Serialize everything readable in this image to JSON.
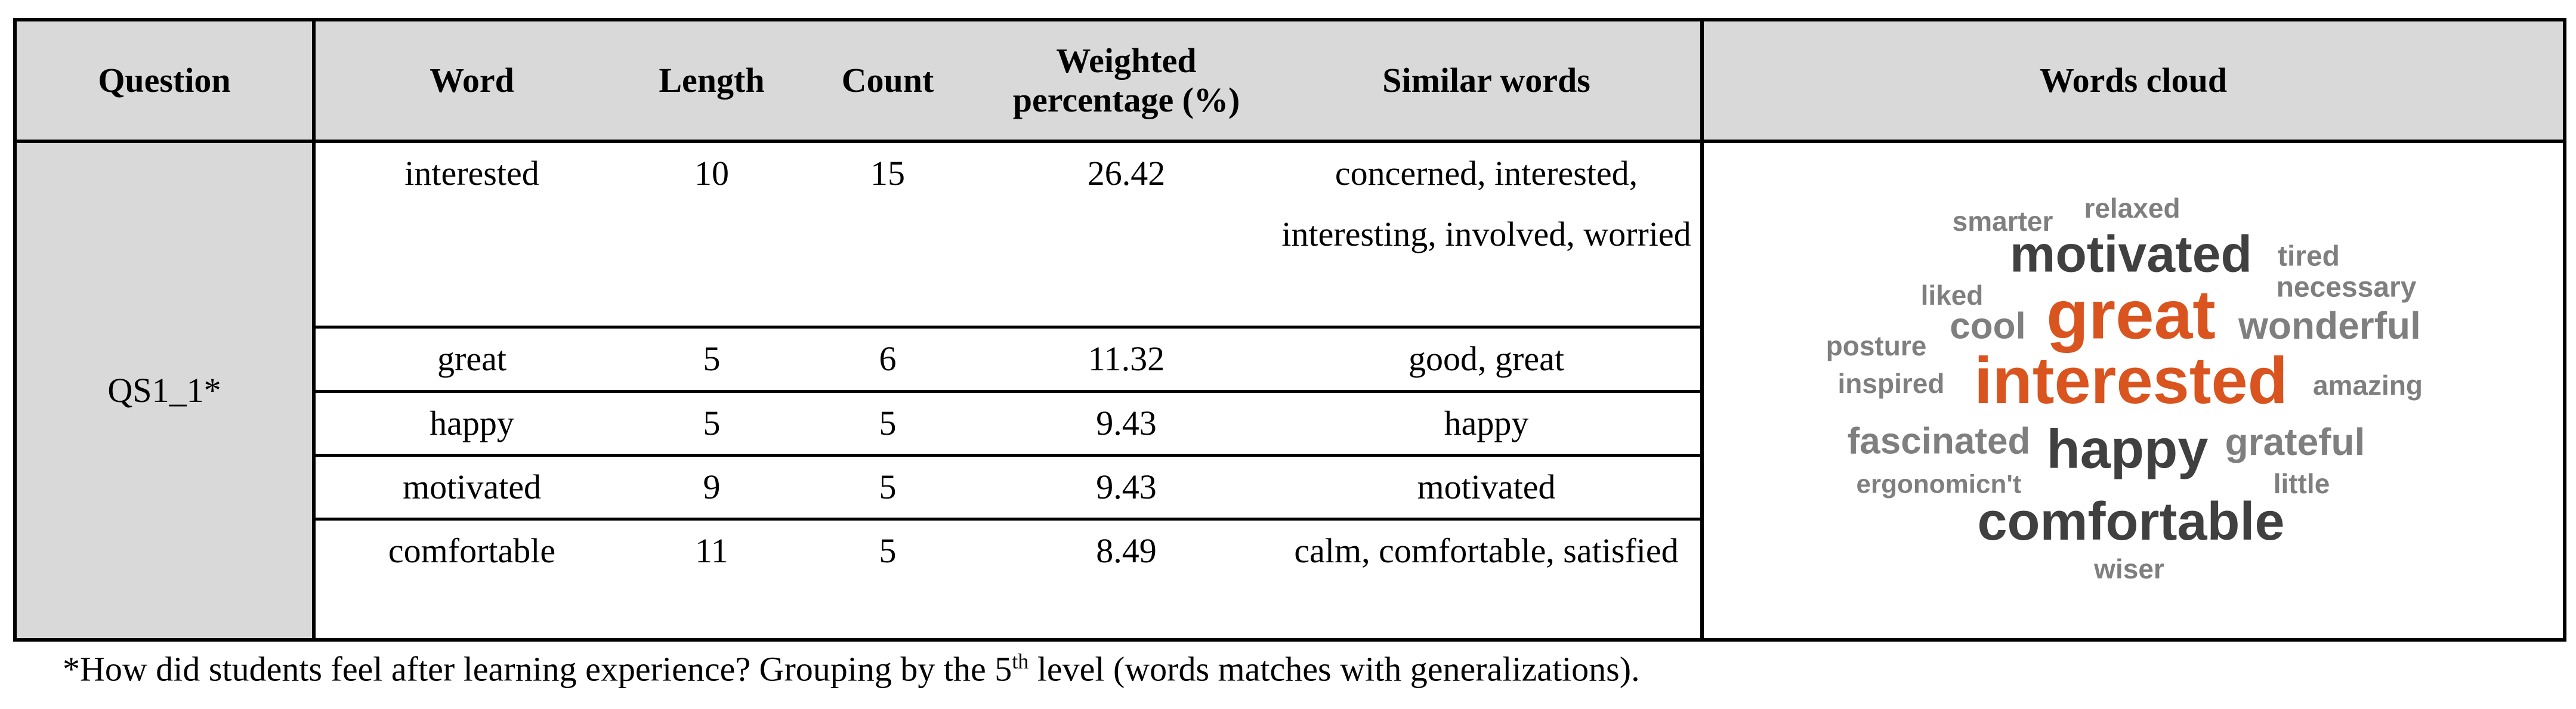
{
  "table": {
    "headers": [
      "Question",
      "Word",
      "Length",
      "Count",
      "Weighted percentage (%)",
      "Similar words",
      "Words cloud"
    ],
    "question": "QS1_1*",
    "rows": [
      [
        "interested",
        "10",
        "15",
        "26.42",
        "concerned, interested, interesting, involved, worried"
      ],
      [
        "great",
        "5",
        "6",
        "11.32",
        "good, great"
      ],
      [
        "happy",
        "5",
        "5",
        "9.43",
        "happy"
      ],
      [
        "motivated",
        "9",
        "5",
        "9.43",
        "motivated"
      ],
      [
        "comfortable",
        "11",
        "5",
        "8.49",
        "calm, comfortable, satisfied"
      ]
    ]
  },
  "word_cloud": [
    "smarter",
    "relaxed",
    "motivated",
    "tired",
    "necessary",
    "liked",
    "great",
    "cool",
    "wonderful",
    "posture",
    "inspired",
    "interested",
    "amazing",
    "fascinated",
    "happy",
    "grateful",
    "ergonomicn't",
    "little",
    "comfortable",
    "wiser"
  ],
  "footnote": {
    "before": "*How did students feel after learning experience? Grouping by the 5",
    "sup": "th",
    "after": " level (words matches with generalizations)."
  }
}
